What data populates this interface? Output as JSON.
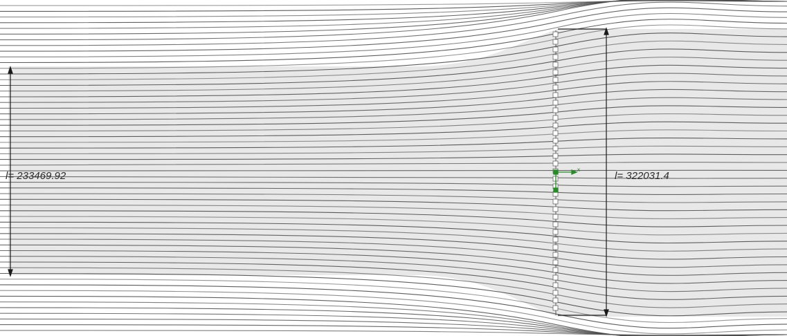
{
  "dimensions": {
    "inlet_label": "l= 233469.92",
    "outlet_label": "l= 322031.4"
  },
  "axis": {
    "x_label": "x"
  },
  "colors": {
    "background": "#ffffff",
    "streamtube_fill": "#e8e8e8",
    "streamline": "#4a4a4a",
    "dimension_line": "#1a1a1a",
    "axis_triad": "#2a8a2a"
  }
}
